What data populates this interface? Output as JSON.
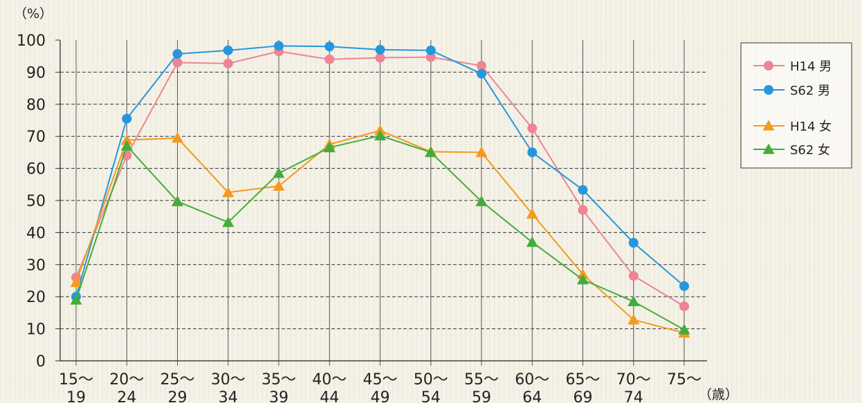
{
  "chart_data": {
    "type": "line",
    "y_unit_label": "（%）",
    "x_unit_label": "（歳）",
    "ylim": [
      0,
      100
    ],
    "yticks": [
      0,
      10,
      20,
      30,
      40,
      50,
      60,
      70,
      80,
      90,
      100
    ],
    "grid": true,
    "legend_position": "right",
    "categories": [
      {
        "top": "15～",
        "bottom": "19"
      },
      {
        "top": "20～",
        "bottom": "24"
      },
      {
        "top": "25～",
        "bottom": "29"
      },
      {
        "top": "30～",
        "bottom": "34"
      },
      {
        "top": "35～",
        "bottom": "39"
      },
      {
        "top": "40～",
        "bottom": "44"
      },
      {
        "top": "45～",
        "bottom": "49"
      },
      {
        "top": "50～",
        "bottom": "54"
      },
      {
        "top": "55～",
        "bottom": "59"
      },
      {
        "top": "60～",
        "bottom": "64"
      },
      {
        "top": "65～",
        "bottom": "69"
      },
      {
        "top": "70～",
        "bottom": "74"
      },
      {
        "top": "75～",
        "bottom": ""
      }
    ],
    "series": [
      {
        "name": "H14 男",
        "color": "#ee8494",
        "marker": "circle",
        "values": [
          26,
          64,
          93,
          92.7,
          96.5,
          94,
          94.5,
          94.7,
          92,
          72.5,
          47,
          26.5,
          17
        ]
      },
      {
        "name": "S62 男",
        "color": "#2597dc",
        "marker": "circle",
        "values": [
          20,
          75.5,
          95.7,
          96.8,
          98.2,
          98,
          97,
          96.8,
          89.5,
          65,
          53.3,
          36.8,
          23.3
        ]
      },
      {
        "name": "H14 女",
        "color": "#f39a1f",
        "marker": "triangle",
        "values": [
          24.5,
          68.8,
          69.5,
          52.5,
          54.5,
          67.5,
          71.8,
          65.2,
          65,
          45.8,
          27,
          12.8,
          8.7
        ]
      },
      {
        "name": "S62 女",
        "color": "#44ac3c",
        "marker": "triangle",
        "values": [
          19,
          67,
          49.7,
          43.2,
          58.5,
          66.5,
          70.2,
          65,
          49.7,
          37,
          25.3,
          18.5,
          9.7
        ]
      }
    ]
  }
}
